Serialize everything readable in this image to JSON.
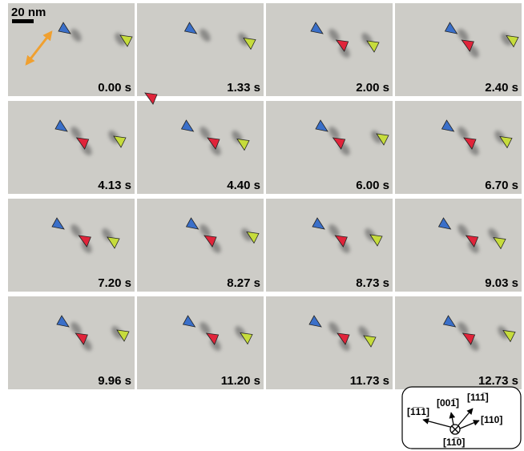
{
  "scale_bar": "20 nm",
  "frames": [
    "0.00 s",
    "1.33 s",
    "2.00 s",
    "2.40 s",
    "4.13 s",
    "4.40 s",
    "6.00 s",
    "6.70 s",
    "7.20 s",
    "8.27 s",
    "8.73 s",
    "9.03 s",
    "9.96 s",
    "11.20 s",
    "11.73 s",
    "12.73 s"
  ],
  "directions": {
    "up_left": "[1̅1̅1]",
    "up": "[001̅]",
    "up_right": "[111̅]",
    "right": "[110]",
    "down": "[11̅0]"
  }
}
